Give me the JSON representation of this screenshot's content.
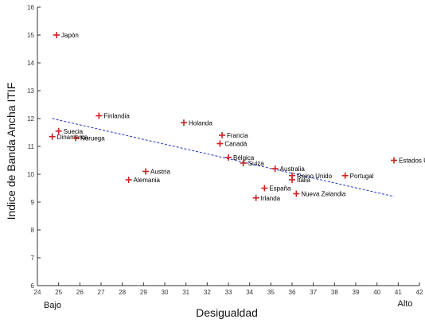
{
  "chart_data": {
    "type": "scatter",
    "xlabel": "Desigualdad",
    "ylabel": "Indice de Banda Ancha ITIF",
    "x_low_label": "Bajo",
    "x_high_label": "Alto",
    "xlim": [
      24,
      42
    ],
    "ylim": [
      6,
      16
    ],
    "xticks": [
      24,
      25,
      26,
      27,
      28,
      29,
      30,
      31,
      32,
      33,
      34,
      35,
      36,
      37,
      38,
      39,
      40,
      41,
      42
    ],
    "yticks": [
      6,
      7,
      8,
      9,
      10,
      11,
      12,
      13,
      14,
      15,
      16
    ],
    "grid": false,
    "points": [
      {
        "label": "Japón",
        "x": 24.9,
        "y": 15.0
      },
      {
        "label": "Finlandia",
        "x": 26.9,
        "y": 12.1
      },
      {
        "label": "Suecia",
        "x": 25.0,
        "y": 11.55
      },
      {
        "label": "Dinamarca",
        "x": 24.7,
        "y": 11.35
      },
      {
        "label": "Noruega",
        "x": 25.8,
        "y": 11.3
      },
      {
        "label": "Holanda",
        "x": 30.9,
        "y": 11.85
      },
      {
        "label": "Francia",
        "x": 32.7,
        "y": 11.4
      },
      {
        "label": "Canadá",
        "x": 32.6,
        "y": 11.1
      },
      {
        "label": "Bélgica",
        "x": 33.0,
        "y": 10.6
      },
      {
        "label": "Suiza",
        "x": 33.7,
        "y": 10.4
      },
      {
        "label": "Australia",
        "x": 35.2,
        "y": 10.2
      },
      {
        "label": "Austria",
        "x": 29.1,
        "y": 10.1
      },
      {
        "label": "Alemania",
        "x": 28.3,
        "y": 9.8
      },
      {
        "label": "Reino Unido",
        "x": 36.0,
        "y": 9.95
      },
      {
        "label": "Italia",
        "x": 36.0,
        "y": 9.8
      },
      {
        "label": "Portugal",
        "x": 38.5,
        "y": 9.95
      },
      {
        "label": "España",
        "x": 34.7,
        "y": 9.5
      },
      {
        "label": "Irlanda",
        "x": 34.3,
        "y": 9.15
      },
      {
        "label": "Nueva Zelandia",
        "x": 36.2,
        "y": 9.3
      },
      {
        "label": "Estados Unidos",
        "x": 40.8,
        "y": 10.5
      }
    ],
    "trendline": {
      "x": [
        24.7,
        40.8
      ],
      "y": [
        12.0,
        9.2
      ]
    }
  },
  "colors": {
    "marker": "#cc2222",
    "trendline": "#2233cc",
    "axis": "#333333"
  }
}
